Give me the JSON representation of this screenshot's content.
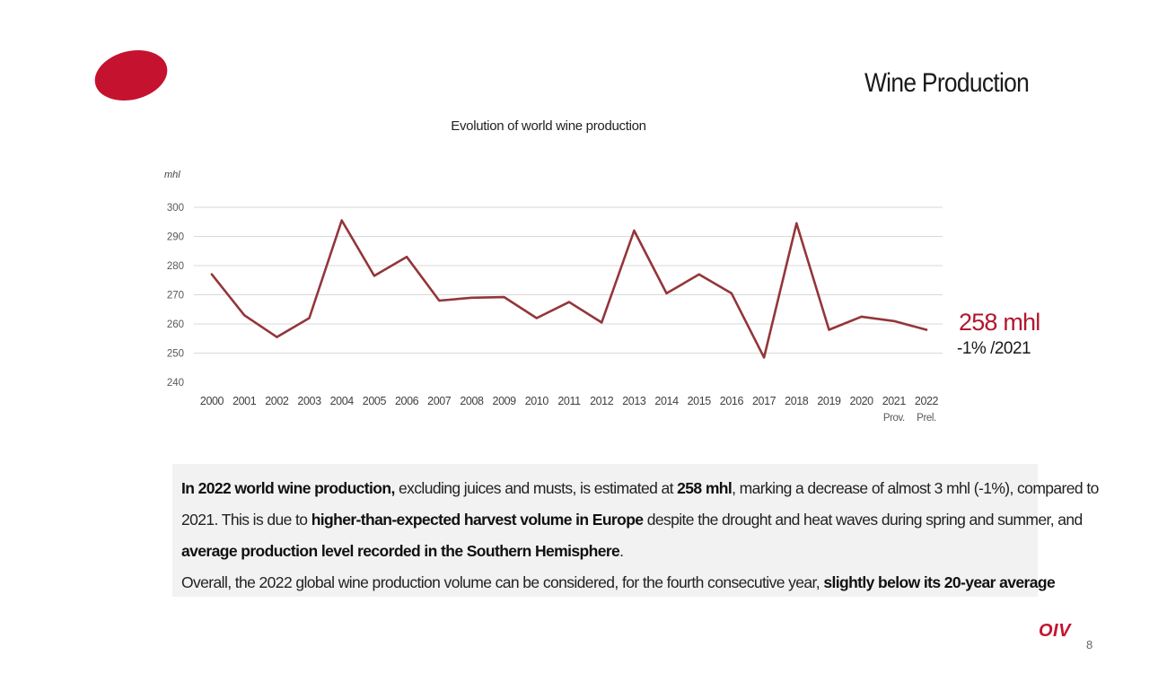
{
  "slide": {
    "title": "Wine Production",
    "page_number": "8",
    "logo_text": "OIV"
  },
  "colors": {
    "accent": "#b0182e",
    "line": "#93363a",
    "summary_bg": "#f2f2f2"
  },
  "chart_data": {
    "type": "line",
    "title": "Evolution of world wine production",
    "ylabel": "mhl",
    "xlabel": "",
    "ylim": [
      240,
      300
    ],
    "yticks": [
      240,
      250,
      260,
      270,
      280,
      290,
      300
    ],
    "grid": true,
    "categories": [
      "2000",
      "2001",
      "2002",
      "2003",
      "2004",
      "2005",
      "2006",
      "2007",
      "2008",
      "2009",
      "2010",
      "2011",
      "2012",
      "2013",
      "2014",
      "2015",
      "2016",
      "2017",
      "2018",
      "2019",
      "2020",
      "2021",
      "2022"
    ],
    "category_sublabels": [
      "",
      "",
      "",
      "",
      "",
      "",
      "",
      "",
      "",
      "",
      "",
      "",
      "",
      "",
      "",
      "",
      "",
      "",
      "",
      "",
      "",
      "Prov.",
      "Prel."
    ],
    "series": [
      {
        "values": [
          277,
          263,
          255.5,
          262,
          295.5,
          276.5,
          283,
          268,
          269,
          269.2,
          262,
          267.5,
          260.5,
          292,
          270.5,
          277,
          270.5,
          248.5,
          294.5,
          258,
          262.5,
          261,
          258
        ]
      }
    ]
  },
  "callout": {
    "value": "258 mhl",
    "change": "-1% /2021"
  },
  "summary": {
    "p1": {
      "b1": "In 2022 world wine production,",
      "t1": " excluding juices and musts, is estimated at ",
      "b2": "258 mhl",
      "t2": ", marking a decrease of almost 3 mhl (-1%), compared to"
    },
    "p2": {
      "t1": "2021. This is due to ",
      "b1": "higher-than-expected harvest volume in Europe",
      "t2": " despite the drought and heat waves during spring and summer, and"
    },
    "p3": {
      "b1": "average production level recorded in the Southern Hemisphere",
      "t1": "."
    },
    "p4": {
      "t1": "Overall, the 2022 global wine production volume can be considered, for the fourth consecutive year, ",
      "b1": "slightly below its 20-year average"
    }
  }
}
